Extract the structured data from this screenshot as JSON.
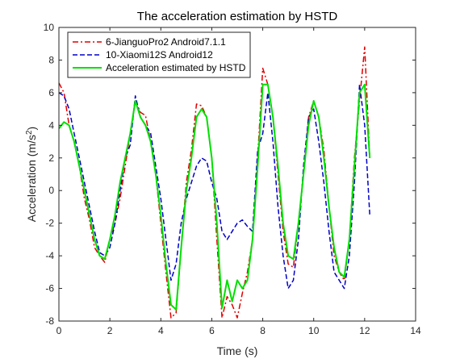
{
  "chart_data": {
    "type": "line",
    "title": "The acceleration estimation by HSTD",
    "xlabel": "Time (s)",
    "ylabel": "Acceleration (m/s",
    "ylabel_sup": "2",
    "ylabel_close": ")",
    "xlim": [
      0,
      14
    ],
    "ylim": [
      -8,
      10
    ],
    "xticks": [
      0,
      2,
      4,
      6,
      8,
      10,
      12,
      14
    ],
    "yticks": [
      -8,
      -6,
      -4,
      -2,
      0,
      2,
      4,
      6,
      8,
      10
    ],
    "grid": false,
    "legend_position": "top-left",
    "series": [
      {
        "name": "6-JianguoPro2 Android7.1.1",
        "color": "#e00000",
        "dash": "7,3,2,3",
        "x": [
          0,
          0.2,
          0.4,
          0.6,
          0.8,
          1.0,
          1.2,
          1.4,
          1.6,
          1.8,
          2.0,
          2.2,
          2.4,
          2.6,
          2.8,
          3.0,
          3.2,
          3.4,
          3.6,
          3.8,
          4.0,
          4.2,
          4.4,
          4.6,
          4.8,
          5.0,
          5.2,
          5.4,
          5.6,
          5.8,
          6.0,
          6.2,
          6.4,
          6.6,
          6.8,
          7.0,
          7.2,
          7.4,
          7.6,
          7.8,
          8.0,
          8.2,
          8.4,
          8.6,
          8.8,
          9.0,
          9.2,
          9.4,
          9.6,
          9.8,
          10.0,
          10.2,
          10.4,
          10.6,
          10.8,
          11.0,
          11.2,
          11.4,
          11.6,
          11.8,
          12.0,
          12.2
        ],
        "y": [
          6.6,
          6.0,
          4.0,
          3.0,
          1.5,
          -0.5,
          -1.8,
          -3.5,
          -4.0,
          -4.4,
          -3.0,
          -2.0,
          -0.5,
          1.5,
          3.5,
          5.5,
          4.8,
          4.6,
          3.0,
          1.0,
          -2.0,
          -5.0,
          -7.8,
          -7.5,
          -3.5,
          0.5,
          2.5,
          5.3,
          5.2,
          4.5,
          2.0,
          -3.0,
          -7.8,
          -6.5,
          -7.0,
          -7.8,
          -6.3,
          -5.0,
          -3.0,
          2.0,
          7.5,
          6.5,
          4.5,
          1.0,
          -2.5,
          -4.5,
          -4.7,
          -2.0,
          1.0,
          4.5,
          5.5,
          4.5,
          2.5,
          -1.0,
          -4.0,
          -5.0,
          -5.5,
          -3.0,
          2.0,
          5.5,
          8.8,
          2.0
        ]
      },
      {
        "name": "10-Xiaomi12S Android12",
        "color": "#0000c8",
        "dash": "6,3",
        "x": [
          0,
          0.2,
          0.4,
          0.6,
          0.8,
          1.0,
          1.2,
          1.4,
          1.6,
          1.8,
          2.0,
          2.2,
          2.4,
          2.6,
          2.8,
          3.0,
          3.2,
          3.4,
          3.6,
          3.8,
          4.0,
          4.2,
          4.4,
          4.6,
          4.8,
          5.0,
          5.2,
          5.4,
          5.6,
          5.8,
          6.0,
          6.2,
          6.4,
          6.6,
          6.8,
          7.0,
          7.2,
          7.4,
          7.6,
          7.8,
          8.0,
          8.2,
          8.4,
          8.6,
          8.8,
          9.0,
          9.2,
          9.4,
          9.6,
          9.8,
          10.0,
          10.2,
          10.4,
          10.6,
          10.8,
          11.0,
          11.2,
          11.4,
          11.6,
          11.8,
          12.0,
          12.2
        ],
        "y": [
          6.0,
          5.8,
          5.0,
          3.5,
          2.0,
          0.5,
          -1.0,
          -2.5,
          -3.8,
          -4.0,
          -3.5,
          -2.0,
          0.0,
          2.0,
          2.8,
          5.8,
          4.5,
          4.0,
          3.5,
          1.5,
          -0.5,
          -3.0,
          -5.5,
          -4.5,
          -2.0,
          -0.5,
          0.5,
          1.5,
          2.0,
          1.8,
          0.5,
          -0.5,
          -2.5,
          -3.0,
          -2.5,
          -2.0,
          -1.8,
          -2.2,
          -2.5,
          2.5,
          3.5,
          6.0,
          3.0,
          -1.0,
          -4.0,
          -6.0,
          -5.5,
          -3.0,
          1.5,
          4.5,
          5.0,
          3.0,
          0.5,
          -2.5,
          -5.0,
          -5.5,
          -6.0,
          -4.0,
          0.5,
          6.5,
          4.0,
          -1.5
        ]
      },
      {
        "name": "Acceleration estimated by HSTD",
        "color": "#00e000",
        "dash": "",
        "x": [
          0,
          0.2,
          0.4,
          0.6,
          0.8,
          1.0,
          1.2,
          1.4,
          1.6,
          1.8,
          2.0,
          2.2,
          2.4,
          2.6,
          2.8,
          3.0,
          3.2,
          3.4,
          3.6,
          3.8,
          4.0,
          4.2,
          4.4,
          4.6,
          4.8,
          5.0,
          5.2,
          5.4,
          5.6,
          5.8,
          6.0,
          6.2,
          6.4,
          6.6,
          6.8,
          7.0,
          7.2,
          7.4,
          7.6,
          7.8,
          8.0,
          8.2,
          8.4,
          8.6,
          8.8,
          9.0,
          9.2,
          9.4,
          9.6,
          9.8,
          10.0,
          10.2,
          10.4,
          10.6,
          10.8,
          11.0,
          11.2,
          11.4,
          11.6,
          11.8,
          12.0,
          12.2
        ],
        "y": [
          3.8,
          4.2,
          4.0,
          3.0,
          1.5,
          0.0,
          -1.5,
          -3.0,
          -4.0,
          -4.2,
          -3.0,
          -1.5,
          0.5,
          2.0,
          3.5,
          5.5,
          4.5,
          4.0,
          3.0,
          1.0,
          -1.5,
          -4.5,
          -7.0,
          -7.3,
          -3.5,
          0.0,
          2.0,
          4.5,
          5.0,
          4.5,
          2.0,
          -2.0,
          -7.2,
          -5.5,
          -6.8,
          -5.5,
          -6.0,
          -5.5,
          -3.0,
          1.5,
          6.5,
          6.5,
          4.5,
          1.5,
          -2.0,
          -4.0,
          -4.2,
          -2.0,
          1.0,
          4.0,
          5.5,
          4.5,
          2.0,
          -1.0,
          -3.5,
          -5.0,
          -5.3,
          -3.0,
          1.5,
          6.0,
          6.5,
          2.0
        ]
      }
    ]
  }
}
